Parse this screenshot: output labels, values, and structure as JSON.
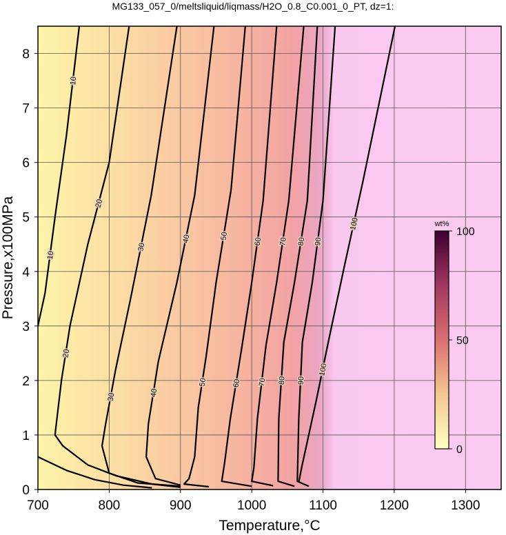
{
  "chart_data": {
    "type": "contour",
    "title": "MG133_057_0/meltsliquid/liqmass/H2O_0.8_C0.001_0_PT, dz=1:",
    "xlabel": "Temperature,°C",
    "ylabel": "Pressure,x100MPa",
    "xlim": [
      700,
      1350
    ],
    "ylim": [
      0,
      8.5
    ],
    "xticks": [
      700,
      800,
      900,
      1000,
      1100,
      1200,
      1300
    ],
    "yticks": [
      0,
      1,
      2,
      3,
      4,
      5,
      6,
      7,
      8
    ],
    "grid": true,
    "colorbar": {
      "label": "wt%",
      "lim": [
        0,
        100
      ],
      "ticks": [
        0,
        50,
        100
      ]
    },
    "contours": [
      {
        "level": 10,
        "x": [
          700,
          710,
          724,
          740,
          758,
          null,
          700,
          740,
          780,
          820,
          860
        ],
        "y": [
          3.0,
          3.6,
          5.0,
          6.5,
          8.5,
          null,
          0.6,
          0.35,
          0.18,
          0.08,
          0.03
        ]
      },
      {
        "level": 20,
        "x": [
          828,
          800,
          770,
          745,
          733,
          724,
          735,
          770,
          810,
          860,
          900
        ],
        "y": [
          8.5,
          6.0,
          4.5,
          3.0,
          2.0,
          1.0,
          0.8,
          0.45,
          0.25,
          0.1,
          0.04
        ]
      },
      {
        "level": 30,
        "x": [
          895,
          859,
          830,
          809,
          795,
          790,
          800,
          840,
          900
        ],
        "y": [
          8.5,
          5.4,
          3.5,
          2.2,
          1.2,
          0.8,
          0.3,
          0.12,
          0.06
        ]
      },
      {
        "level": 40,
        "x": [
          947,
          920,
          895,
          869,
          855,
          852,
          865,
          900
        ],
        "y": [
          8.5,
          5.4,
          3.8,
          2.35,
          1.2,
          0.6,
          0.2,
          0.08
        ]
      },
      {
        "level": 50,
        "x": [
          991,
          971,
          950,
          936,
          925,
          920,
          912,
          905,
          940
        ],
        "y": [
          8.5,
          5.5,
          3.8,
          2.44,
          1.5,
          0.6,
          0.2,
          0.1,
          0.05
        ]
      },
      {
        "level": 60,
        "x": [
          1035,
          1016,
          1000,
          986,
          970,
          962,
          958,
          1000
        ],
        "y": [
          8.5,
          5.3,
          3.8,
          2.6,
          1.3,
          0.5,
          0.15,
          0.06
        ]
      },
      {
        "level": 70,
        "x": [
          1073,
          1052,
          1035,
          1020,
          1008,
          1003,
          1000,
          1030
        ],
        "y": [
          8.5,
          5.3,
          3.8,
          2.64,
          1.3,
          0.4,
          0.15,
          0.07
        ]
      },
      {
        "level": 80,
        "x": [
          1092,
          1078,
          1060,
          1045,
          1038,
          1037,
          1060
        ],
        "y": [
          8.5,
          5.3,
          3.8,
          2.7,
          1.3,
          0.15,
          0.06
        ]
      },
      {
        "level": 90,
        "x": [
          1117,
          1100,
          1085,
          1071,
          1066,
          1064,
          1080
        ],
        "y": [
          8.5,
          5.3,
          3.8,
          2.7,
          1.3,
          0.15,
          0.06
        ]
      },
      {
        "level": 100,
        "x": [
          1201,
          1156,
          1130,
          1109,
          1090,
          1070,
          1066
        ],
        "y": [
          8.5,
          5.65,
          4.1,
          2.8,
          1.6,
          0.4,
          0.13
        ]
      }
    ]
  }
}
